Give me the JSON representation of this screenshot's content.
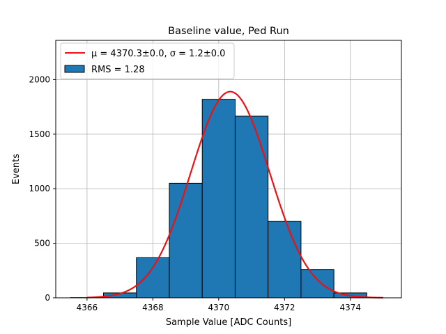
{
  "chart_data": {
    "type": "bar",
    "title": "Baseline value, Ped Run",
    "xlabel": "Sample Value [ADC Counts]",
    "ylabel": "Events",
    "xlim": [
      4365.05,
      4375.55
    ],
    "ylim": [
      0,
      2360
    ],
    "x_ticks": [
      4366,
      4368,
      4370,
      4372,
      4374
    ],
    "y_ticks": [
      0,
      500,
      1000,
      1500,
      2000
    ],
    "grid": true,
    "legend_position": "top-left",
    "histogram": {
      "name": "RMS = 1.28",
      "color": "#1f77b4",
      "edge_color": "#000000",
      "bins": [
        {
          "x0": 4365.5,
          "x1": 4366.5,
          "count": 2
        },
        {
          "x0": 4366.5,
          "x1": 4367.5,
          "count": 45
        },
        {
          "x0": 4367.5,
          "x1": 4368.5,
          "count": 368
        },
        {
          "x0": 4368.5,
          "x1": 4369.5,
          "count": 1050
        },
        {
          "x0": 4369.5,
          "x1": 4370.5,
          "count": 1820
        },
        {
          "x0": 4370.5,
          "x1": 4371.5,
          "count": 1665
        },
        {
          "x0": 4371.5,
          "x1": 4372.5,
          "count": 700
        },
        {
          "x0": 4372.5,
          "x1": 4373.5,
          "count": 258
        },
        {
          "x0": 4373.5,
          "x1": 4374.5,
          "count": 45
        }
      ]
    },
    "fit": {
      "name": "μ = 4370.3±0.0, σ = 1.2±0.0",
      "color": "#ee1111",
      "function": "gaussian",
      "mu": 4370.35,
      "sigma": 1.2,
      "amplitude": 1890,
      "x_range": [
        4366,
        4375
      ]
    }
  }
}
